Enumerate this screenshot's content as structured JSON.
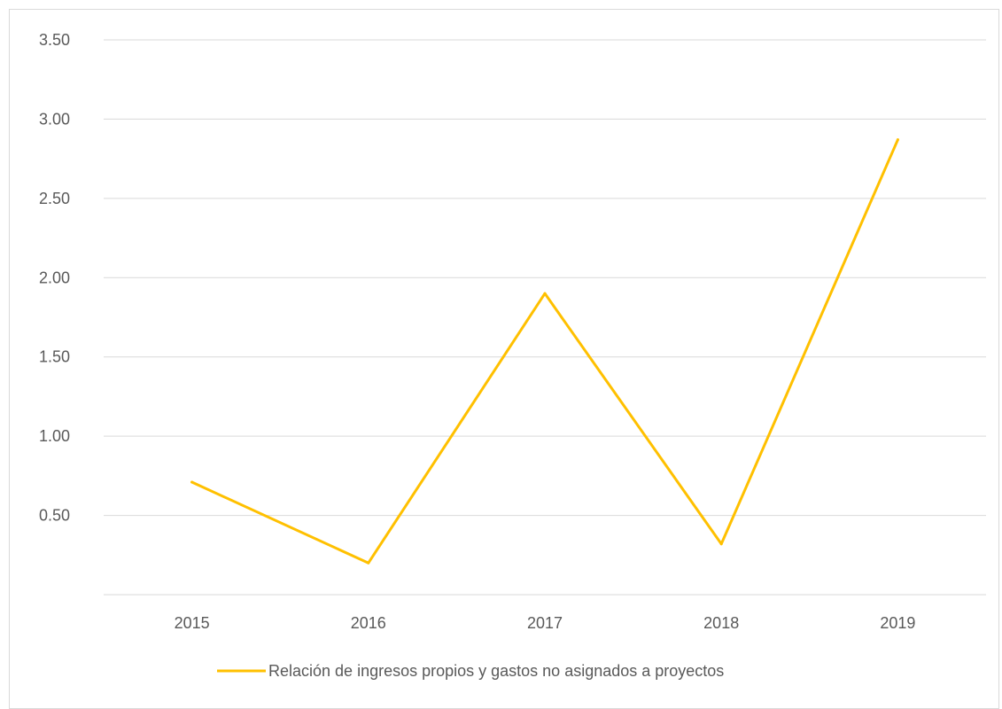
{
  "chart_data": {
    "type": "line",
    "title": "",
    "xlabel": "",
    "ylabel": "",
    "categories": [
      "2015",
      "2016",
      "2017",
      "2018",
      "2019"
    ],
    "series": [
      {
        "name": "Relación de ingresos propios y gastos no asignados a proyectos",
        "values": [
          0.71,
          0.2,
          1.9,
          0.32,
          2.87
        ],
        "color": "#ffc000"
      }
    ],
    "y_ticks": [
      "0.50",
      "1.00",
      "1.50",
      "2.00",
      "2.50",
      "3.00",
      "3.50"
    ],
    "ylim": [
      0,
      3.5
    ],
    "grid": true,
    "legend": "bottom-center"
  }
}
